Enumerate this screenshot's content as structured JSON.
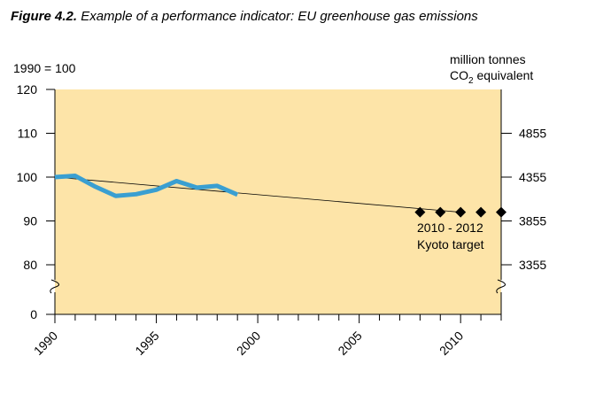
{
  "caption": {
    "figure_label": "Figure 4.2.",
    "title": "Example of a performance indicator: EU greenhouse gas emissions"
  },
  "colors": {
    "plot_background": "#fde4a8",
    "series": "#3a9fd1",
    "trend": "#000000",
    "marker": "#000000"
  },
  "chart_data": {
    "type": "line",
    "title": "Example of a performance indicator: EU greenhouse gas emissions",
    "left_axis": {
      "label": "1990 = 100",
      "ticks": [
        0,
        80,
        90,
        100,
        110,
        120
      ],
      "tick_labels": [
        "0",
        "80",
        "90",
        "100",
        "110",
        "120"
      ],
      "ylim": [
        80,
        120
      ],
      "axis_break": true
    },
    "right_axis": {
      "label_line1": "million tonnes",
      "label_line2_pre": "CO",
      "label_line2_sub": "2",
      "label_line2_post": " equivalent",
      "ticks": [
        3355,
        3855,
        4355,
        4855
      ],
      "tick_labels": [
        "3355",
        "3855",
        "4355",
        "4855"
      ],
      "axis_break": true
    },
    "x_axis": {
      "xlim": [
        1990,
        2012
      ],
      "major_ticks": [
        1990,
        1995,
        2000,
        2005,
        2010
      ],
      "tick_labels": [
        "1990",
        "1995",
        "2000",
        "2005",
        "2010"
      ]
    },
    "series": [
      {
        "x": [
          1990,
          1991,
          1992,
          1993,
          1994,
          1995,
          1996,
          1997,
          1998,
          1999
        ],
        "values": [
          100,
          100.3,
          97.8,
          95.7,
          96.1,
          97.1,
          99.1,
          97.6,
          98.0,
          96.0
        ]
      }
    ],
    "trend_line": {
      "x": [
        1990,
        2010
      ],
      "values": [
        100,
        92
      ]
    },
    "target": {
      "x": [
        2008,
        2009,
        2010,
        2011,
        2012
      ],
      "values": [
        92,
        92,
        92,
        92,
        92
      ],
      "label_line1": "2010 - 2012",
      "label_line2": "Kyoto target"
    }
  }
}
